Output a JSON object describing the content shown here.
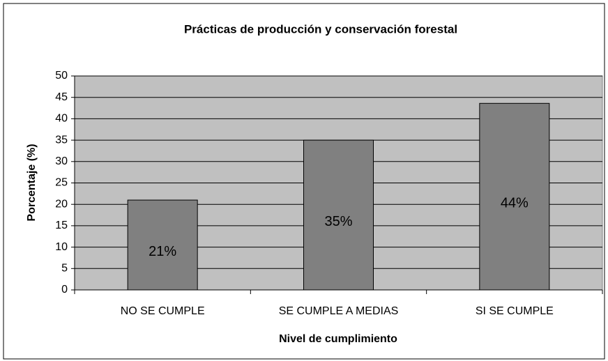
{
  "chart_data": {
    "type": "bar",
    "title": "Prácticas de producción y conservación forestal",
    "x_label": "Nivel de cumplimiento",
    "y_label": "Porcentaje (%)",
    "categories": [
      "NO SE CUMPLE",
      "SE CUMPLE A MEDIAS",
      "SI SE CUMPLE"
    ],
    "values": [
      21,
      35,
      43.6
    ],
    "value_labels": [
      "21%",
      "35%",
      "44%"
    ],
    "color": "#808080",
    "ylim": [
      0,
      50
    ],
    "yticks": [
      0,
      5,
      10,
      15,
      20,
      25,
      30,
      35,
      40,
      45,
      50
    ],
    "grid": true
  }
}
